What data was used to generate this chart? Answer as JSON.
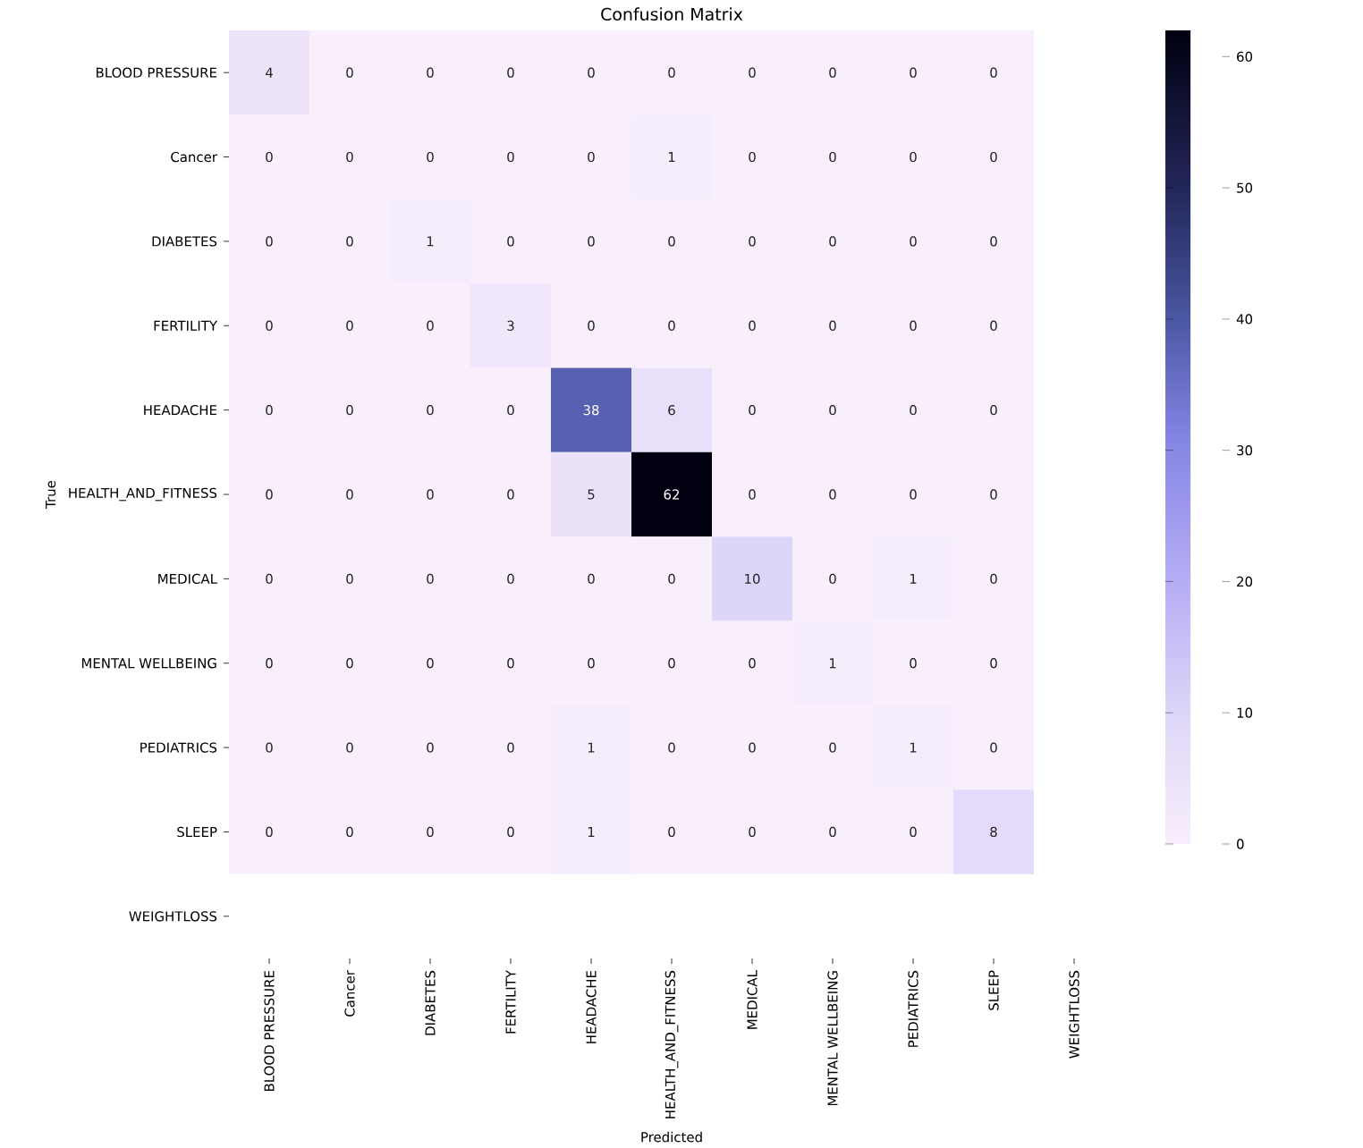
{
  "chart_data": {
    "type": "heatmap",
    "title": "Confusion Matrix",
    "xlabel": "Predicted",
    "ylabel": "True",
    "categories": [
      "BLOOD PRESSURE",
      "Cancer",
      "DIABETES",
      "FERTILITY",
      "HEADACHE",
      "HEALTH_AND_FITNESS",
      "MEDICAL",
      "MENTAL WELLBEING",
      "PEDIATRICS",
      "SLEEP",
      "WEIGHTLOSS"
    ],
    "y_categories": [
      "BLOOD PRESSURE",
      "Cancer",
      "DIABETES",
      "FERTILITY",
      "HEADACHE",
      "HEALTH_AND_FITNESS",
      "MEDICAL",
      "MENTAL WELLBEING",
      "PEDIATRICS",
      "SLEEP",
      "WEIGHTLOSS"
    ],
    "cells": [
      [
        4,
        0,
        0,
        0,
        0,
        0,
        0,
        0,
        0,
        0,
        null
      ],
      [
        0,
        0,
        0,
        0,
        0,
        1,
        0,
        0,
        0,
        0,
        null
      ],
      [
        0,
        0,
        1,
        0,
        0,
        0,
        0,
        0,
        0,
        0,
        null
      ],
      [
        0,
        0,
        0,
        3,
        0,
        0,
        0,
        0,
        0,
        0,
        null
      ],
      [
        0,
        0,
        0,
        0,
        38,
        6,
        0,
        0,
        0,
        0,
        null
      ],
      [
        0,
        0,
        0,
        0,
        5,
        62,
        0,
        0,
        0,
        0,
        null
      ],
      [
        0,
        0,
        0,
        0,
        0,
        0,
        10,
        0,
        1,
        0,
        null
      ],
      [
        0,
        0,
        0,
        0,
        0,
        0,
        0,
        1,
        0,
        0,
        null
      ],
      [
        0,
        0,
        0,
        0,
        1,
        0,
        0,
        0,
        1,
        0,
        null
      ],
      [
        0,
        0,
        0,
        0,
        1,
        0,
        0,
        0,
        0,
        8,
        null
      ],
      [
        null,
        null,
        null,
        null,
        null,
        null,
        null,
        null,
        null,
        null,
        null
      ]
    ],
    "clim": [
      0,
      62
    ],
    "cticks": [
      0,
      10,
      20,
      30,
      40,
      50,
      60
    ],
    "data_labels": true
  }
}
